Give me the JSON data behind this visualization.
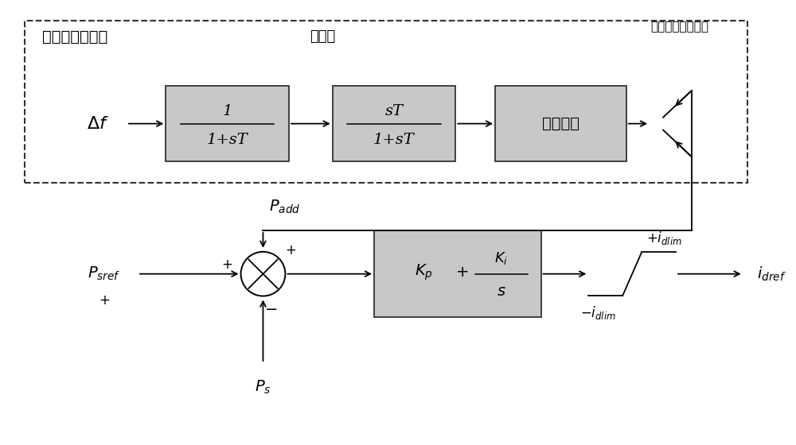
{
  "bg_color": "#ffffff",
  "box_facecolor": "#c8c8c8",
  "box_edgecolor": "#333333",
  "title_fudi": "附加阻尼控制器",
  "title_lubo": "滤波器",
  "title_rate": "调节速率限制环节",
  "label_robust": "鲁棒控制",
  "label_delta_f": "$\\Delta f$",
  "label_Padd": "$P_{add}$",
  "label_Psref": "$P_{sref}$",
  "label_Ps": "$P_s$",
  "label_idref": "$i_{dref}$",
  "label_idlim_pos": "$+i_{dlim}$",
  "label_idlim_neg": "$-i_{dlim}$",
  "figsize": [
    10.0,
    5.6
  ],
  "dpi": 100
}
